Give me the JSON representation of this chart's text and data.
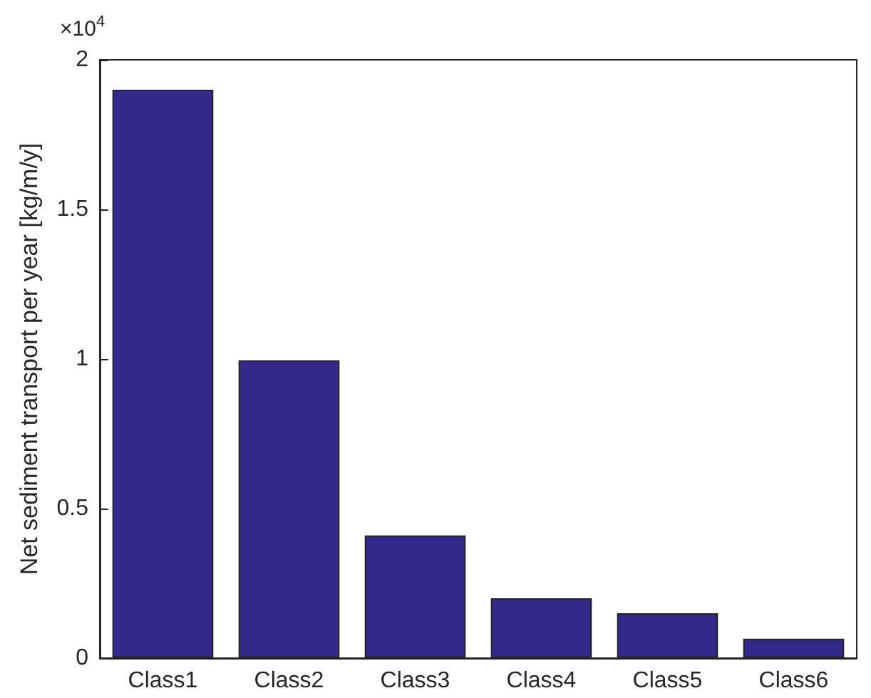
{
  "chart_data": {
    "type": "bar",
    "ylabel": "Net sediment transport per year [kg/m/y]",
    "categories": [
      "Class1",
      "Class2",
      "Class3",
      "Class4",
      "Class5",
      "Class6"
    ],
    "values": [
      1.9,
      0.995,
      0.41,
      0.2,
      0.15,
      0.065
    ],
    "color": "#33298a",
    "ylim": [
      0,
      2
    ],
    "yticks": [
      0,
      0.5,
      1,
      1.5,
      2
    ],
    "annotations": [
      "×10$^{4}$"
    ],
    "grid": false
  }
}
